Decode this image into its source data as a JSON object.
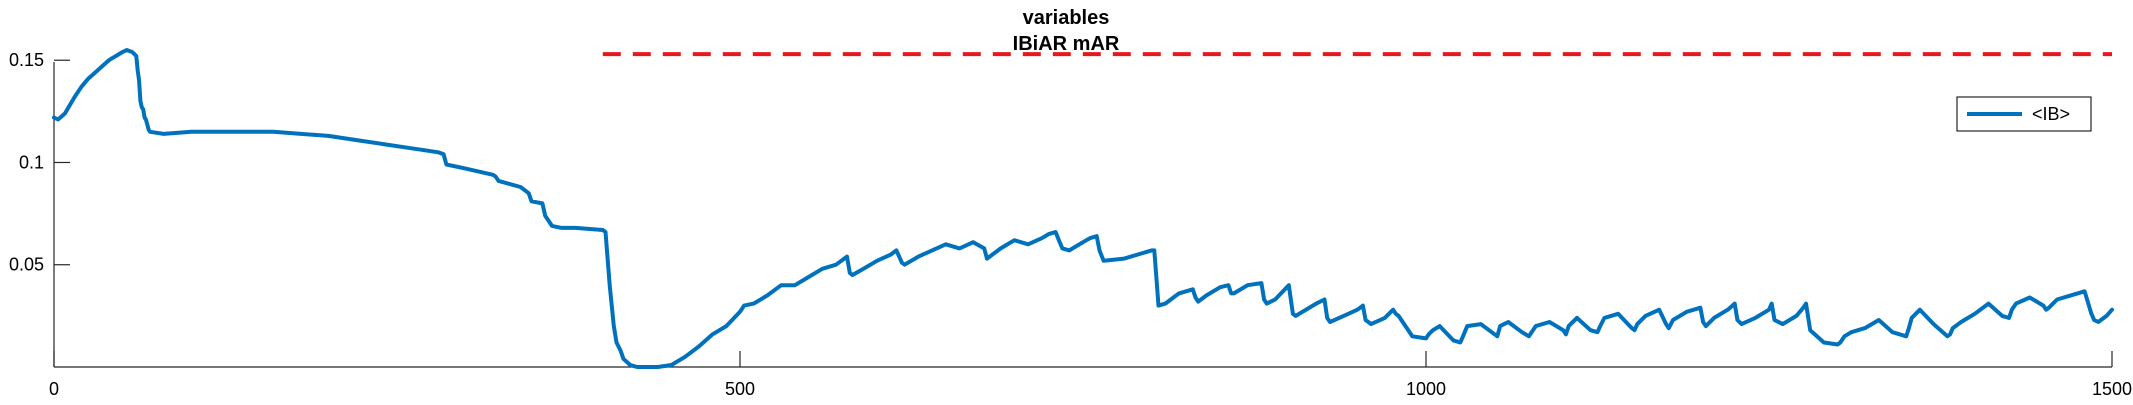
{
  "chart_data": {
    "type": "line",
    "title": "variables",
    "subtitle": "IBiAR mAR",
    "xlabel": "",
    "ylabel": "",
    "xlim": [
      0,
      1500
    ],
    "ylim": [
      0,
      0.155
    ],
    "xticks": [
      0,
      500,
      1000,
      1500
    ],
    "xtick_labels": [
      "0",
      "500",
      "1000",
      "1500"
    ],
    "yticks": [
      0.05,
      0.1,
      0.15
    ],
    "ytick_labels": [
      "0.05",
      "0.1",
      "0.15"
    ],
    "grid": false,
    "legend": {
      "position": "top-right",
      "entries": [
        "<IB>"
      ]
    },
    "colors": {
      "series": "#0072BD",
      "reference": "#E8171D",
      "axis": "#262626"
    },
    "reference_line": {
      "y": 0.153,
      "x_start": 400,
      "x_end": 1500,
      "style": "dashed"
    },
    "series": [
      {
        "name": "<IB>",
        "x": [
          0,
          3,
          8,
          15,
          20,
          25,
          30,
          35,
          40,
          45,
          50,
          53,
          57,
          60,
          61,
          62,
          63,
          64,
          65,
          66,
          67,
          69,
          70,
          80,
          100,
          120,
          140,
          160,
          180,
          200,
          220,
          240,
          260,
          270,
          280,
          284,
          286,
          300,
          320,
          322,
          324,
          340,
          346,
          348,
          356,
          357,
          358,
          360,
          363,
          370,
          380,
          400,
          402,
          405,
          408,
          410,
          413,
          415,
          420,
          425,
          430,
          440,
          450,
          460,
          470,
          480,
          490,
          500,
          503,
          510,
          520,
          530,
          540,
          550,
          560,
          570,
          578,
          580,
          582,
          590,
          600,
          610,
          614,
          618,
          620,
          630,
          640,
          650,
          660,
          670,
          678,
          680,
          682,
          690,
          700,
          710,
          720,
          725,
          730,
          733,
          735,
          740,
          750,
          755,
          760,
          762,
          765,
          780,
          800,
          802,
          805,
          810,
          820,
          830,
          832,
          834,
          840,
          850,
          856,
          858,
          860,
          870,
          880,
          882,
          884,
          890,
          900,
          903,
          905,
          910,
          920,
          926,
          928,
          930,
          940,
          950,
          954,
          956,
          960,
          970,
          976,
          978,
          980,
          990,
          1000,
          1002,
          1005,
          1010,
          1020,
          1025,
          1027,
          1030,
          1040,
          1050,
          1052,
          1054,
          1060,
          1070,
          1075,
          1077,
          1080,
          1090,
          1100,
          1102,
          1104,
          1110,
          1120,
          1125,
          1127,
          1130,
          1140,
          1150,
          1152,
          1154,
          1160,
          1170,
          1175,
          1177,
          1180,
          1190,
          1200,
          1202,
          1204,
          1210,
          1220,
          1225,
          1227,
          1230,
          1240,
          1250,
          1252,
          1254,
          1260,
          1270,
          1275,
          1277,
          1280,
          1290,
          1300,
          1302,
          1305,
          1310,
          1320,
          1330,
          1340,
          1350,
          1352,
          1354,
          1360,
          1370,
          1380,
          1382,
          1384,
          1390,
          1400,
          1410,
          1420,
          1425,
          1427,
          1430,
          1440,
          1450,
          1452,
          1454,
          1460,
          1470,
          1480,
          1485,
          1487,
          1490,
          1496,
          1500
        ],
        "y": [
          0.122,
          0.121,
          0.124,
          0.132,
          0.137,
          0.141,
          0.144,
          0.147,
          0.15,
          0.152,
          0.154,
          0.155,
          0.154,
          0.152,
          0.145,
          0.14,
          0.13,
          0.127,
          0.126,
          0.122,
          0.121,
          0.116,
          0.115,
          0.114,
          0.115,
          0.115,
          0.115,
          0.115,
          0.114,
          0.113,
          0.111,
          0.109,
          0.107,
          0.106,
          0.105,
          0.104,
          0.099,
          0.097,
          0.094,
          0.093,
          0.091,
          0.088,
          0.085,
          0.081,
          0.08,
          0.077,
          0.074,
          0.072,
          0.069,
          0.068,
          0.068,
          0.067,
          0.066,
          0.04,
          0.02,
          0.012,
          0.008,
          0.004,
          0.001,
          0.0,
          0.0,
          0.0,
          0.001,
          0.005,
          0.01,
          0.016,
          0.02,
          0.027,
          0.03,
          0.031,
          0.035,
          0.04,
          0.04,
          0.044,
          0.048,
          0.05,
          0.054,
          0.046,
          0.045,
          0.048,
          0.052,
          0.055,
          0.057,
          0.051,
          0.05,
          0.054,
          0.057,
          0.06,
          0.058,
          0.061,
          0.058,
          0.053,
          0.054,
          0.058,
          0.062,
          0.06,
          0.063,
          0.065,
          0.066,
          0.061,
          0.058,
          0.057,
          0.061,
          0.063,
          0.064,
          0.057,
          0.052,
          0.053,
          0.057,
          0.057,
          0.03,
          0.031,
          0.036,
          0.038,
          0.034,
          0.032,
          0.035,
          0.039,
          0.04,
          0.036,
          0.036,
          0.04,
          0.041,
          0.033,
          0.031,
          0.033,
          0.04,
          0.026,
          0.025,
          0.027,
          0.031,
          0.033,
          0.024,
          0.022,
          0.025,
          0.028,
          0.03,
          0.023,
          0.021,
          0.024,
          0.028,
          0.026,
          0.025,
          0.015,
          0.014,
          0.016,
          0.018,
          0.02,
          0.013,
          0.012,
          0.015,
          0.02,
          0.021,
          0.016,
          0.015,
          0.02,
          0.022,
          0.017,
          0.015,
          0.017,
          0.02,
          0.022,
          0.018,
          0.016,
          0.02,
          0.024,
          0.018,
          0.017,
          0.02,
          0.024,
          0.026,
          0.019,
          0.018,
          0.021,
          0.025,
          0.028,
          0.021,
          0.019,
          0.023,
          0.027,
          0.029,
          0.022,
          0.02,
          0.024,
          0.028,
          0.031,
          0.023,
          0.021,
          0.024,
          0.028,
          0.031,
          0.023,
          0.021,
          0.025,
          0.029,
          0.031,
          0.018,
          0.012,
          0.011,
          0.012,
          0.015,
          0.017,
          0.019,
          0.023,
          0.017,
          0.015,
          0.019,
          0.024,
          0.028,
          0.021,
          0.015,
          0.016,
          0.019,
          0.022,
          0.026,
          0.031,
          0.025,
          0.024,
          0.028,
          0.031,
          0.034,
          0.03,
          0.028,
          0.029,
          0.033,
          0.035,
          0.037,
          0.026,
          0.023,
          0.022,
          0.025,
          0.028
        ]
      }
    ]
  }
}
